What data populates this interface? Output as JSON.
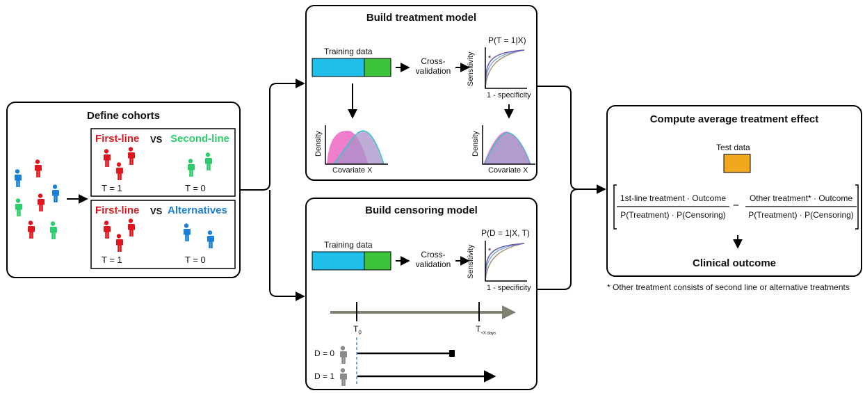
{
  "cohorts": {
    "title": "Define cohorts",
    "top": {
      "left_label": "First-line",
      "vs": "VS",
      "right_label": "Second-line",
      "t_left": "T = 1",
      "t_right": "T = 0"
    },
    "bottom": {
      "left_label": "First-line",
      "vs": "VS",
      "right_label": "Alternatives",
      "t_left": "T = 1",
      "t_right": "T = 0"
    }
  },
  "treatment_model": {
    "title": "Build treatment model",
    "training_data": "Training data",
    "cross_validation_1": "Cross-",
    "cross_validation_2": "validation",
    "prob_label": "P(T = 1|X)",
    "y_axis": "Sensitivity",
    "x_axis": "1 - specificity",
    "density_y": "Density",
    "density_x_left": "Covariate X",
    "density_x_right": "Covariate X",
    "star": "*"
  },
  "censoring_model": {
    "title": "Build censoring model",
    "training_data": "Training data",
    "cross_validation_1": "Cross-",
    "cross_validation_2": "validation",
    "prob_label": "P(D = 1|X, T)",
    "y_axis": "Sensitivity",
    "x_axis": "1 - specificity",
    "star": "*",
    "t0": "T",
    "t0_sub": "0",
    "tx": "T",
    "tx_sub": "+X days",
    "d0": "D = 0",
    "d1": "D = 1"
  },
  "ate": {
    "title": "Compute average treatment effect",
    "test_data": "Test data",
    "num_left": "1st-line treatment · Outcome",
    "den_left": "P(Treatment) · P(Censoring)",
    "minus": "−",
    "num_right": "Other treatment* · Outcome",
    "den_right": "P(Treatment) · P(Censoring)",
    "outcome": "Clinical outcome",
    "footnote": "* Other treatment consists of second line or alternative treatments"
  },
  "colors": {
    "red": "#e0161f",
    "green": "#2dcc6b",
    "blue": "#1a7fd6",
    "cyan": "#1fbfea",
    "train_green": "#3cc43c",
    "orange": "#f2a81d",
    "pink": "#f06fc8",
    "purple": "#a892c8",
    "timeline": "#7e8370",
    "gray_person": "#8a8a8a"
  }
}
